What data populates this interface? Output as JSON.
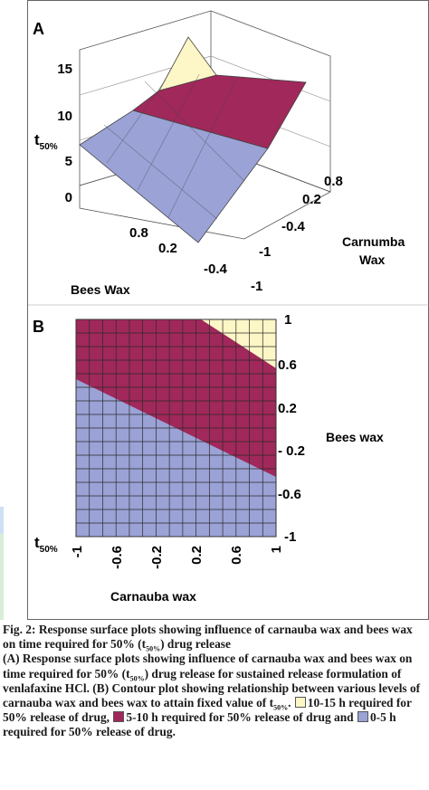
{
  "chart_data": [
    {
      "panel_label": "A",
      "type": "surface",
      "zlabel_main": "t",
      "zlabel_sub": "50%",
      "z_ticks": [
        "15",
        "10",
        "5",
        "0"
      ],
      "zlim": [
        0,
        15
      ],
      "x_name": "Bees Wax",
      "x_ticks": [
        "0.8",
        "0.2",
        "-0.4",
        "-1"
      ],
      "y_name_line1": "Carnumba",
      "y_name_line2": "Wax",
      "y_ticks": [
        "0.8",
        "0.2",
        "-0.4",
        "-1"
      ],
      "bands": [
        {
          "range": [
            10,
            15
          ],
          "color": "#fdf6c6"
        },
        {
          "range": [
            5,
            10
          ],
          "color": "#a0285a"
        },
        {
          "range": [
            0,
            5
          ],
          "color": "#9aa2d6"
        }
      ],
      "surface_corners": [
        {
          "carnauba_wax": 1,
          "bees_wax": 1,
          "t50": 15
        },
        {
          "carnauba_wax": -1,
          "bees_wax": 1,
          "t50": 6
        },
        {
          "carnauba_wax": -1,
          "bees_wax": -1,
          "t50": 0
        },
        {
          "carnauba_wax": 1,
          "bees_wax": -1,
          "t50": 2
        }
      ]
    },
    {
      "panel_label": "B",
      "type": "contour",
      "xlabel": "Carnauba wax",
      "x_ticks": [
        "-1",
        "-0.6",
        "-0.2",
        "0.2",
        "0.6",
        "1"
      ],
      "xlim": [
        -1,
        1
      ],
      "ylabel": "Bees wax",
      "y_ticks": [
        "1",
        "0.6",
        "0.2",
        "- 0.2",
        "-0.6",
        "-1"
      ],
      "ylim": [
        -1,
        1
      ],
      "legend_title_main": "t",
      "legend_title_sub": "50%",
      "boundaries": [
        {
          "level": 10,
          "from": {
            "carnauba_wax": 0.25,
            "bees_wax": 1
          },
          "to": {
            "carnauba_wax": 1,
            "bees_wax": 0.55
          }
        },
        {
          "level": 5,
          "from": {
            "carnauba_wax": -1,
            "bees_wax": 0.45
          },
          "to": {
            "carnauba_wax": 1,
            "bees_wax": -0.45
          }
        }
      ],
      "regions": [
        {
          "label": "10-15 h",
          "color": "#fdf6c6"
        },
        {
          "label": "5-10 h",
          "color": "#a0285a"
        },
        {
          "label": "0-5 h",
          "color": "#9aa2d6"
        }
      ]
    }
  ],
  "caption": {
    "fig_label": "Fig. 2:",
    "title_pre": "Response surface plots showing influence of carnauba wax and bees wax on time required for 50% (t",
    "title_sub": "50%",
    "title_post": ") drug release",
    "body_1": "(A) Response surface plots showing influence of carnauba wax and bees wax on time required for 50% (t",
    "body_1_sub": "50%",
    "body_2": ") drug release for sustained release formulation of venlafaxine HCl. (B) Contour plot showing relationship between various levels of carnauba wax and bees wax to attain fixed value of t",
    "body_2_sub": "50%",
    "body_3": ". ",
    "legend_high": "10-15 h required for 50% release of drug,",
    "legend_mid": "5-10 h required for 50% release of drug and",
    "legend_low": "0-5 h required for 50% release of drug."
  }
}
